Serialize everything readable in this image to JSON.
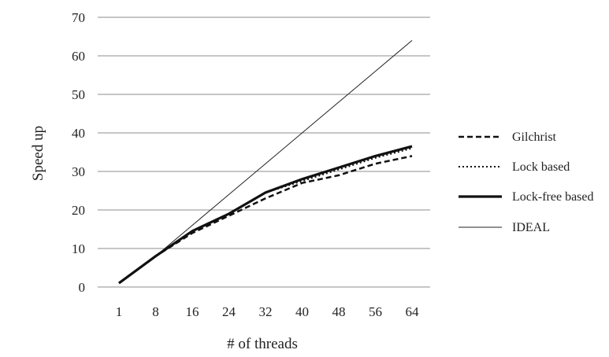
{
  "chart_data": {
    "type": "line",
    "title": "",
    "xlabel": "# of threads",
    "ylabel": "Speed up",
    "categories": [
      "1",
      "8",
      "16",
      "24",
      "32",
      "40",
      "48",
      "56",
      "64"
    ],
    "ylim": [
      0,
      70
    ],
    "yticks": [
      0,
      10,
      20,
      30,
      40,
      50,
      60,
      70
    ],
    "grid": "horizontal",
    "legend_position": "right",
    "series": [
      {
        "name": "Gilchrist",
        "style": "dashed",
        "color": "#111111",
        "values": [
          1,
          8,
          14,
          18.5,
          23,
          27,
          29,
          32,
          34
        ]
      },
      {
        "name": "Lock based",
        "style": "dotted",
        "color": "#111111",
        "values": [
          1,
          8,
          14.5,
          19,
          24.5,
          27.5,
          30.5,
          33.5,
          36
        ]
      },
      {
        "name": "Lock-free based",
        "style": "thick",
        "color": "#111111",
        "values": [
          1,
          8,
          14.5,
          19,
          24.5,
          28,
          31,
          34,
          36.5
        ]
      },
      {
        "name": "IDEAL",
        "style": "thin",
        "color": "#222222",
        "values": [
          1,
          8,
          16,
          24,
          32,
          40,
          48,
          56,
          64
        ]
      }
    ]
  }
}
